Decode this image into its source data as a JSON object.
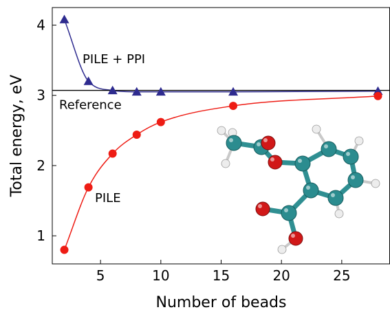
{
  "chart_data": {
    "type": "line",
    "title": "",
    "xlabel": "Number of beads",
    "ylabel": "Total energy, eV",
    "xlim": [
      1,
      29
    ],
    "ylim": [
      0.6,
      4.25
    ],
    "xticks": [
      5,
      10,
      15,
      20,
      25
    ],
    "xtick_labels": [
      "5",
      "10",
      "15",
      "20",
      "25"
    ],
    "yticks": [
      1,
      2,
      3,
      4
    ],
    "ytick_labels": [
      "1",
      "2",
      "3",
      "4"
    ],
    "grid": false,
    "reference": {
      "label": "Reference",
      "value": 3.07,
      "color": "#000000"
    },
    "series": [
      {
        "name": "PILE + PPI",
        "color": "#2e2b8f",
        "marker": "triangle",
        "x": [
          2,
          4,
          6,
          8,
          10,
          16,
          28
        ],
        "y": [
          4.08,
          3.2,
          3.07,
          3.05,
          3.05,
          3.05,
          3.06
        ]
      },
      {
        "name": "PILE",
        "color": "#ee1c14",
        "marker": "circle",
        "x": [
          2,
          4,
          6,
          8,
          10,
          16,
          28
        ],
        "y": [
          0.8,
          1.69,
          2.17,
          2.44,
          2.62,
          2.85,
          2.99
        ]
      }
    ]
  }
}
